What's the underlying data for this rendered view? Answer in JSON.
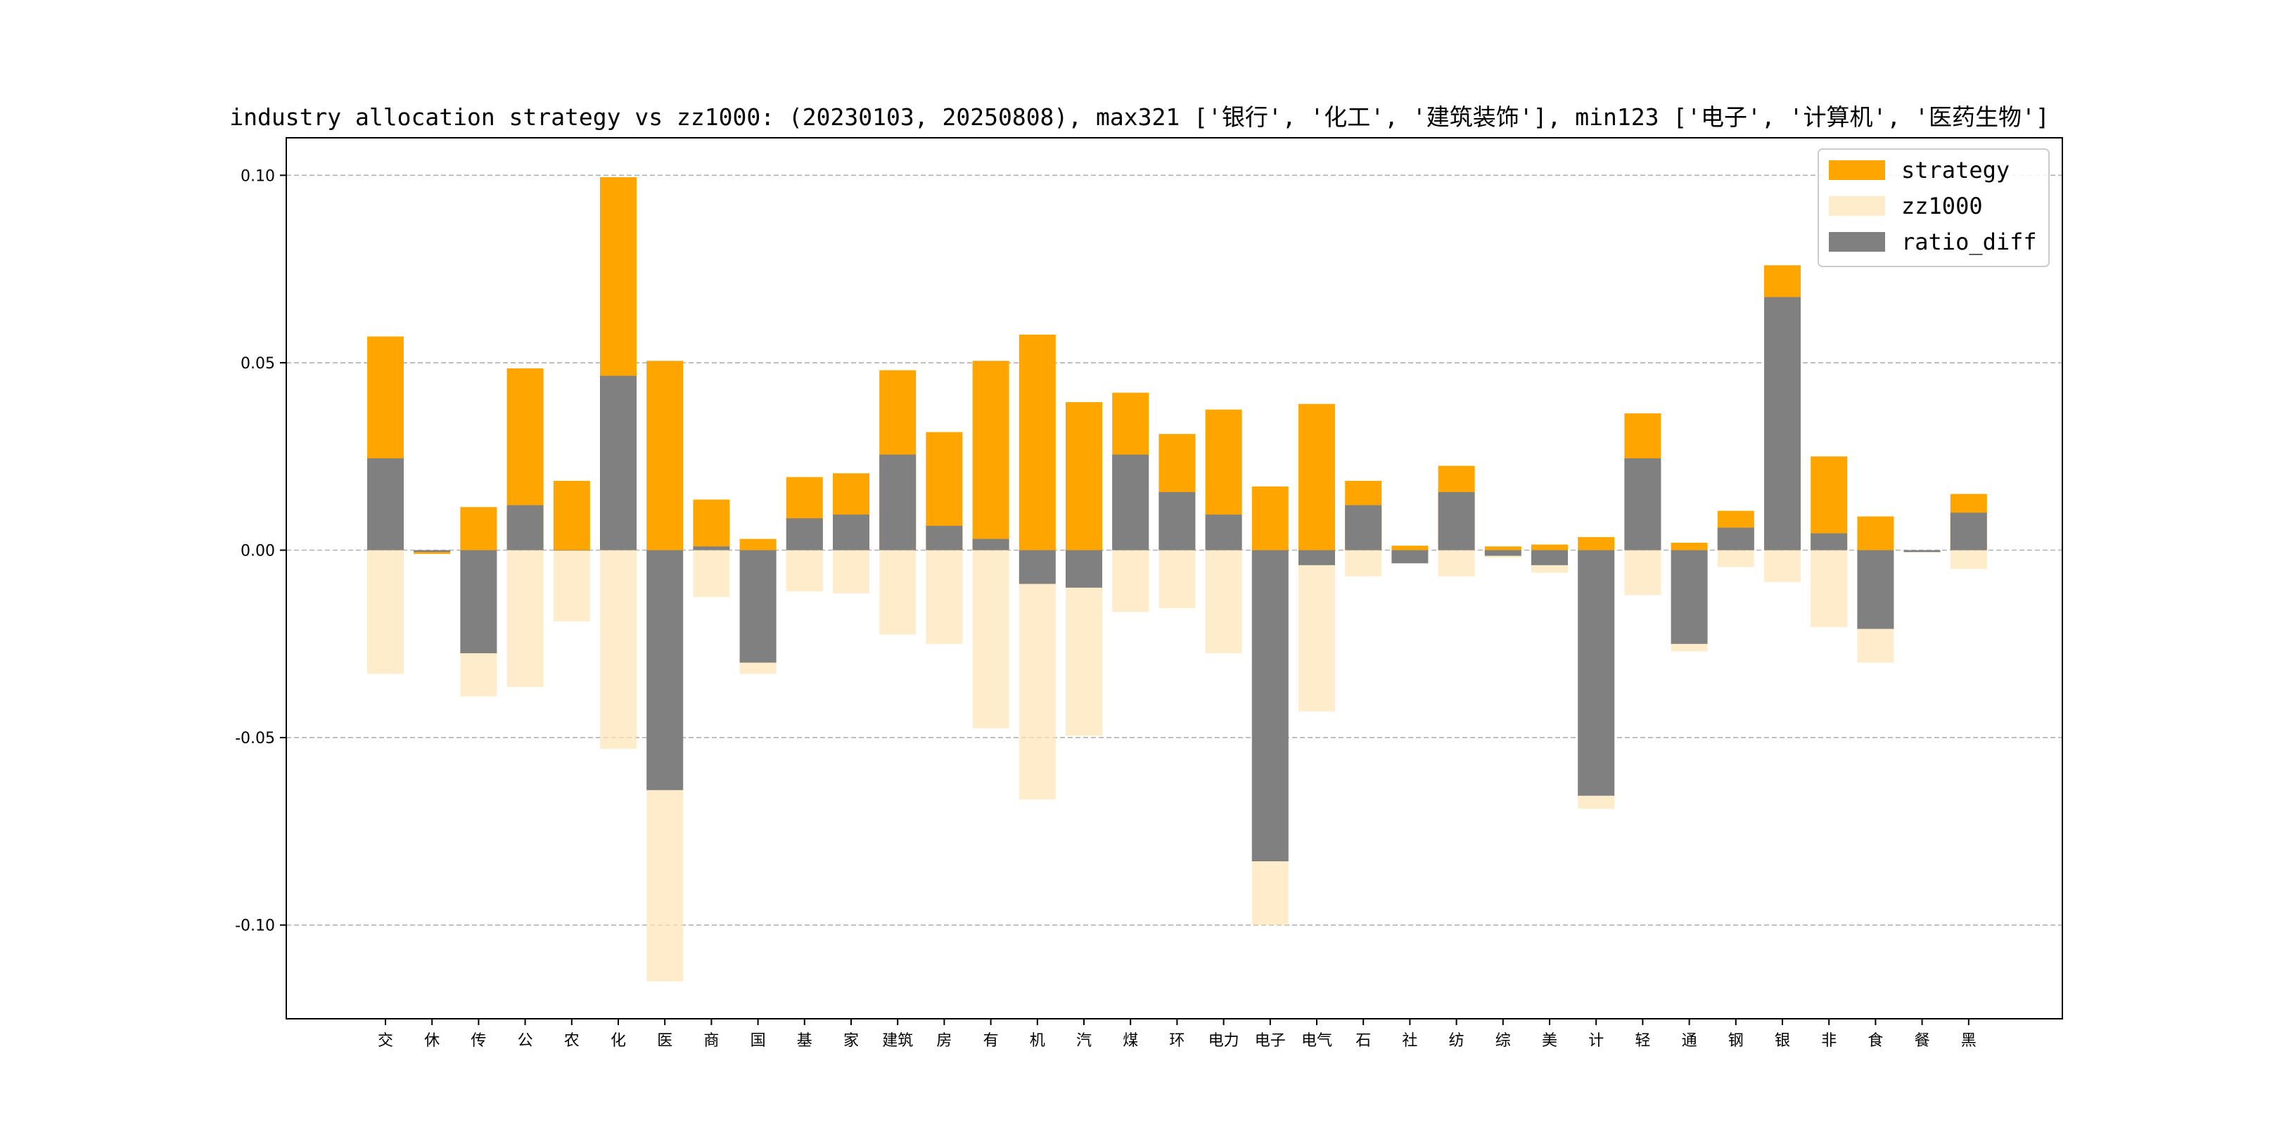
{
  "chart_data": {
    "type": "bar",
    "title": "industry allocation strategy vs zz1000: (20230103, 20250808), max321 ['银行', '化工', '建筑装饰'], min123 ['电子', '计算机', '医药生物']",
    "xlabel": "",
    "ylabel": "",
    "ylim": [
      -0.125,
      0.11
    ],
    "yticks": [
      -0.1,
      -0.05,
      0.0,
      0.05,
      0.1
    ],
    "ytick_labels": [
      "-0.10",
      "-0.05",
      "0.00",
      "0.05",
      "0.10"
    ],
    "grid": "horizontal dashed",
    "legend_position": "top-right",
    "categories": [
      "交",
      "休",
      "传",
      "公",
      "农",
      "化",
      "医",
      "商",
      "国",
      "基",
      "家",
      "建筑",
      "房",
      "有",
      "机",
      "汽",
      "煤",
      "环",
      "电力",
      "电子",
      "电气",
      "石",
      "社",
      "纺",
      "综",
      "美",
      "计",
      "轻",
      "通",
      "钢",
      "银",
      "非",
      "食",
      "餐",
      "黑"
    ],
    "series": [
      {
        "name": "strategy",
        "color": "#FFA500",
        "values": [
          0.057,
          -0.001,
          0.0115,
          0.0485,
          0.0185,
          0.0995,
          0.0505,
          0.0135,
          0.003,
          0.0195,
          0.0205,
          0.048,
          0.0315,
          0.0505,
          0.0575,
          0.0395,
          0.042,
          0.031,
          0.0375,
          0.017,
          0.039,
          0.0185,
          0.0012,
          0.0225,
          0.001,
          0.0015,
          0.0035,
          0.0365,
          0.002,
          0.0105,
          0.076,
          0.025,
          0.009,
          -0.0005,
          0.015
        ]
      },
      {
        "name": "zz1000",
        "color": "#FFE4B5",
        "values": [
          -0.033,
          -0.0005,
          -0.039,
          -0.0365,
          -0.019,
          -0.053,
          -0.115,
          -0.0125,
          -0.033,
          -0.011,
          -0.0115,
          -0.0225,
          -0.025,
          -0.0475,
          -0.0665,
          -0.0495,
          -0.0165,
          -0.0155,
          -0.0275,
          -0.1,
          -0.043,
          -0.007,
          -0.0035,
          -0.007,
          -0.002,
          -0.006,
          -0.069,
          -0.012,
          -0.027,
          -0.0045,
          -0.0085,
          -0.0205,
          -0.03,
          -0.0005,
          -0.005
        ]
      },
      {
        "name": "ratio_diff",
        "color": "#808080",
        "values": [
          0.0245,
          -0.0005,
          -0.0275,
          0.012,
          0.0,
          0.0465,
          -0.064,
          0.001,
          -0.03,
          0.0085,
          0.0095,
          0.0255,
          0.0065,
          0.003,
          -0.009,
          -0.01,
          0.0255,
          0.0155,
          0.0095,
          -0.083,
          -0.004,
          0.012,
          -0.0035,
          0.0155,
          -0.0015,
          -0.004,
          -0.0655,
          0.0245,
          -0.025,
          0.006,
          0.0675,
          0.0045,
          -0.021,
          -0.0005,
          0.01
        ]
      }
    ]
  }
}
